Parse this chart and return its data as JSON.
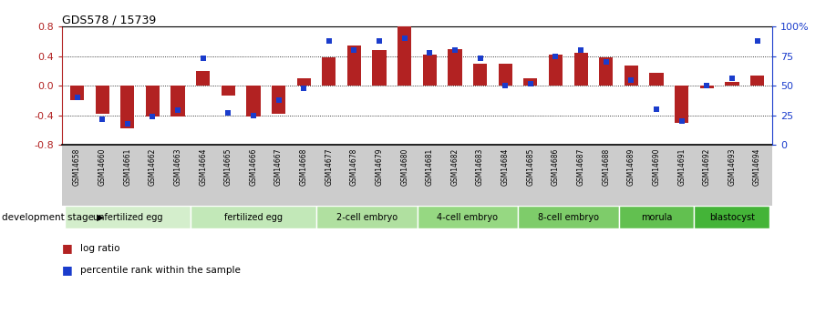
{
  "title": "GDS578 / 15739",
  "samples": [
    "GSM14658",
    "GSM14660",
    "GSM14661",
    "GSM14662",
    "GSM14663",
    "GSM14664",
    "GSM14665",
    "GSM14666",
    "GSM14667",
    "GSM14668",
    "GSM14677",
    "GSM14678",
    "GSM14679",
    "GSM14680",
    "GSM14681",
    "GSM14682",
    "GSM14683",
    "GSM14684",
    "GSM14685",
    "GSM14686",
    "GSM14687",
    "GSM14688",
    "GSM14689",
    "GSM14690",
    "GSM14691",
    "GSM14692",
    "GSM14693",
    "GSM14694"
  ],
  "log_ratio": [
    -0.19,
    -0.38,
    -0.58,
    -0.42,
    -0.42,
    0.2,
    -0.13,
    -0.42,
    -0.38,
    0.1,
    0.38,
    0.55,
    0.48,
    0.8,
    0.42,
    0.5,
    0.3,
    0.3,
    0.1,
    0.42,
    0.45,
    0.38,
    0.28,
    0.18,
    -0.5,
    -0.04,
    0.05,
    0.14
  ],
  "percentile": [
    40,
    22,
    18,
    24,
    29,
    73,
    27,
    25,
    38,
    48,
    88,
    80,
    88,
    90,
    78,
    80,
    73,
    50,
    52,
    75,
    80,
    70,
    55,
    30,
    20,
    50,
    56,
    88
  ],
  "stages": [
    {
      "label": "unfertilized egg",
      "start": 0,
      "end": 5,
      "color": "#d4eecc"
    },
    {
      "label": "fertilized egg",
      "start": 5,
      "end": 10,
      "color": "#c2e8b8"
    },
    {
      "label": "2-cell embryo",
      "start": 10,
      "end": 14,
      "color": "#b0e0a0"
    },
    {
      "label": "4-cell embryo",
      "start": 14,
      "end": 18,
      "color": "#96d882"
    },
    {
      "label": "8-cell embryo",
      "start": 18,
      "end": 22,
      "color": "#7ecc6a"
    },
    {
      "label": "morula",
      "start": 22,
      "end": 25,
      "color": "#62c050"
    },
    {
      "label": "blastocyst",
      "start": 25,
      "end": 28,
      "color": "#44b438"
    }
  ],
  "bar_color": "#b22222",
  "dot_color": "#1a3ccc",
  "ylim_left": [
    -0.8,
    0.8
  ],
  "ylim_right": [
    0,
    100
  ],
  "yticks_left": [
    -0.8,
    -0.4,
    0.0,
    0.4,
    0.8
  ],
  "yticks_right": [
    0,
    25,
    50,
    75,
    100
  ],
  "yticklabels_right": [
    "0",
    "25",
    "50",
    "75",
    "100%"
  ],
  "hlines": [
    -0.4,
    0.0,
    0.4
  ],
  "xtick_bg": "#cccccc",
  "label_text": "development stage ▶"
}
